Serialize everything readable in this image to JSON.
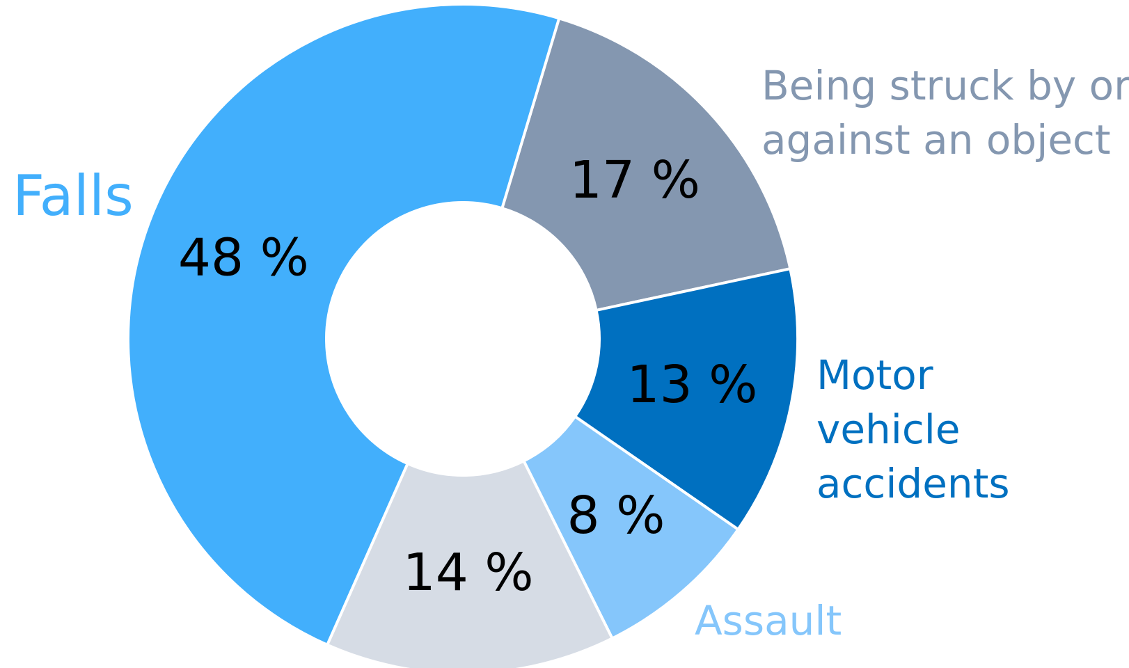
{
  "chart_data": {
    "type": "donut",
    "categories": [
      "Being struck by or against an object",
      "Motor vehicle accidents",
      "Assault",
      null,
      "Falls"
    ],
    "values": [
      17,
      13,
      8,
      14,
      48
    ],
    "value_labels": [
      "17 %",
      "13 %",
      "8 %",
      "14 %",
      "48 %"
    ],
    "colors": [
      "#8497b0",
      "#0070c0",
      "#85c6fb",
      "#d6dce5",
      "#42affc"
    ]
  }
}
